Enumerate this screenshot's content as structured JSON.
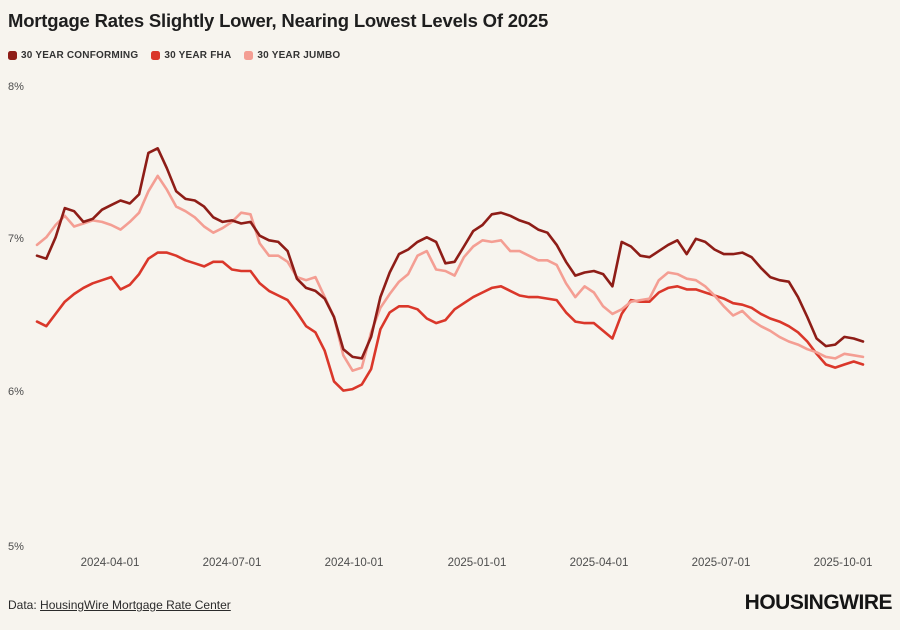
{
  "header": {
    "title": "Mortgage Rates Slightly Lower, Nearing Lowest Levels Of 2025"
  },
  "legend": {
    "items": [
      {
        "label": "30 YEAR CONFORMING",
        "color": "#8e1d17"
      },
      {
        "label": "30 YEAR FHA",
        "color": "#da372a"
      },
      {
        "label": "30 YEAR JUMBO",
        "color": "#f49e93"
      }
    ]
  },
  "footer": {
    "prefix": "Data:",
    "link_label": "HousingWire Mortgage Rate Center",
    "brand": "HOUSINGWIRE"
  },
  "chart_data": {
    "type": "line",
    "title": "Mortgage Rates Slightly Lower, Nearing Lowest Levels Of 2025",
    "x_range": [
      "2024-02-05",
      "2025-10-15"
    ],
    "sampling": "weekly",
    "x_tick_labels": [
      "2024-04-01",
      "2024-07-01",
      "2024-10-01",
      "2025-01-01",
      "2025-04-01",
      "2025-07-01",
      "2025-10-01"
    ],
    "y_tick_labels": [
      "8%",
      "7%",
      "6%",
      "5%"
    ],
    "y_tick_values": [
      8,
      7,
      6,
      5
    ],
    "ylim": [
      5,
      8
    ],
    "y_unit": "percent",
    "grid": false,
    "legend_position": "top-left",
    "series": [
      {
        "name": "30 YEAR CONFORMING",
        "color": "#8e1d17",
        "values": [
          6.9,
          6.88,
          7.02,
          7.21,
          7.19,
          7.12,
          7.14,
          7.2,
          7.23,
          7.26,
          7.24,
          7.3,
          7.57,
          7.6,
          7.47,
          7.32,
          7.27,
          7.26,
          7.22,
          7.15,
          7.12,
          7.13,
          7.11,
          7.12,
          7.03,
          7.0,
          6.99,
          6.93,
          6.75,
          6.69,
          6.67,
          6.62,
          6.5,
          6.29,
          6.24,
          6.23,
          6.37,
          6.63,
          6.79,
          6.91,
          6.94,
          6.99,
          7.02,
          6.99,
          6.85,
          6.86,
          6.96,
          7.06,
          7.1,
          7.17,
          7.18,
          7.16,
          7.13,
          7.11,
          7.07,
          7.05,
          6.97,
          6.86,
          6.77,
          6.79,
          6.8,
          6.78,
          6.7,
          6.99,
          6.96,
          6.9,
          6.89,
          6.93,
          6.97,
          7.0,
          6.91,
          7.01,
          6.99,
          6.94,
          6.91,
          6.91,
          6.92,
          6.89,
          6.82,
          6.76,
          6.74,
          6.73,
          6.63,
          6.5,
          6.36,
          6.31,
          6.32,
          6.37,
          6.36,
          6.34
        ]
      },
      {
        "name": "30 YEAR FHA",
        "color": "#da372a",
        "values": [
          6.47,
          6.44,
          6.52,
          6.6,
          6.65,
          6.69,
          6.72,
          6.74,
          6.76,
          6.68,
          6.71,
          6.78,
          6.88,
          6.92,
          6.92,
          6.9,
          6.87,
          6.85,
          6.83,
          6.86,
          6.86,
          6.81,
          6.8,
          6.8,
          6.72,
          6.67,
          6.64,
          6.61,
          6.53,
          6.44,
          6.4,
          6.28,
          6.08,
          6.02,
          6.03,
          6.06,
          6.16,
          6.42,
          6.53,
          6.57,
          6.57,
          6.55,
          6.49,
          6.46,
          6.48,
          6.55,
          6.59,
          6.63,
          6.66,
          6.69,
          6.7,
          6.67,
          6.64,
          6.63,
          6.63,
          6.62,
          6.61,
          6.53,
          6.47,
          6.46,
          6.46,
          6.41,
          6.36,
          6.52,
          6.61,
          6.6,
          6.6,
          6.66,
          6.69,
          6.7,
          6.68,
          6.68,
          6.66,
          6.64,
          6.62,
          6.59,
          6.58,
          6.56,
          6.52,
          6.49,
          6.47,
          6.44,
          6.4,
          6.34,
          6.26,
          6.19,
          6.17,
          6.19,
          6.21,
          6.19
        ]
      },
      {
        "name": "30 YEAR JUMBO",
        "color": "#f49e93",
        "values": [
          6.97,
          7.02,
          7.1,
          7.16,
          7.09,
          7.11,
          7.13,
          7.12,
          7.1,
          7.07,
          7.12,
          7.18,
          7.32,
          7.42,
          7.33,
          7.22,
          7.19,
          7.15,
          7.09,
          7.05,
          7.08,
          7.12,
          7.18,
          7.17,
          6.98,
          6.9,
          6.9,
          6.86,
          6.76,
          6.74,
          6.76,
          6.63,
          6.5,
          6.25,
          6.15,
          6.17,
          6.4,
          6.56,
          6.65,
          6.73,
          6.78,
          6.9,
          6.93,
          6.81,
          6.8,
          6.77,
          6.89,
          6.96,
          7.0,
          6.99,
          7.0,
          6.93,
          6.93,
          6.9,
          6.87,
          6.87,
          6.84,
          6.72,
          6.63,
          6.7,
          6.66,
          6.57,
          6.52,
          6.55,
          6.6,
          6.61,
          6.62,
          6.74,
          6.79,
          6.78,
          6.75,
          6.74,
          6.7,
          6.64,
          6.57,
          6.51,
          6.54,
          6.48,
          6.44,
          6.41,
          6.37,
          6.34,
          6.32,
          6.29,
          6.27,
          6.24,
          6.23,
          6.26,
          6.25,
          6.24
        ]
      }
    ]
  }
}
